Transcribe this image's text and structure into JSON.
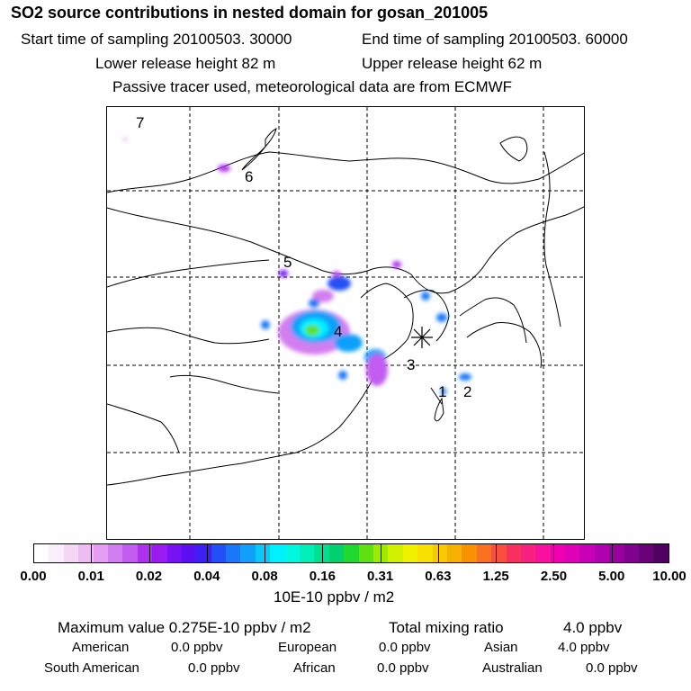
{
  "header": {
    "title": "SO2 source contributions in nested domain for gosan_201005",
    "start_label": "Start time of sampling 20100503. 30000",
    "end_label": "End time of sampling 20100503. 60000",
    "lower_release": "Lower release height   82 m",
    "upper_release": "Upper release height   62 m",
    "tracer_note": "Passive tracer used, meteorological data are from ECMWF"
  },
  "map": {
    "source_labels": [
      "7",
      "6",
      "5",
      "4",
      "3",
      "2",
      "1"
    ],
    "receptor_name": "gosan"
  },
  "colorbar": {
    "unit": "10E-10 ppbv / m2",
    "tick_labels": [
      "0.00",
      "0.01",
      "0.02",
      "0.04",
      "0.08",
      "0.16",
      "0.31",
      "0.63",
      "1.25",
      "2.50",
      "5.00",
      "10.00"
    ],
    "colors": [
      "#ffffff",
      "#fbeefc",
      "#f4d6f6",
      "#eebcf3",
      "#e39ef1",
      "#d37ef0",
      "#c35cf0",
      "#b030f0",
      "#9a1af0",
      "#7812f2",
      "#5a10f3",
      "#3d20f5",
      "#2050f6",
      "#1878f8",
      "#10a0fa",
      "#08c8fc",
      "#00f0ff",
      "#00f8e0",
      "#00f0b8",
      "#00e090",
      "#00d070",
      "#20d830",
      "#60e010",
      "#a0e800",
      "#d0f000",
      "#f0f000",
      "#f8e000",
      "#f8c800",
      "#f8b000",
      "#f89000",
      "#f87020",
      "#f85040",
      "#f83060",
      "#f82080",
      "#f810a0",
      "#f000b0",
      "#e000b8",
      "#c800b8",
      "#b000b0",
      "#9800a0",
      "#800090",
      "#680078",
      "#500060"
    ]
  },
  "summary": {
    "maximum_label": "Maximum value  0.275E-10 ppbv / m2",
    "total_label": "Total mixing ratio",
    "total_value": "4.0 ppbv",
    "american_label": "American",
    "american_value": "0.0 ppbv",
    "european_label": "European",
    "european_value": "0.0 ppbv",
    "asian_label": "Asian",
    "asian_value": "4.0 ppbv",
    "south_american_label": "South American",
    "south_american_value": "0.0 ppbv",
    "african_label": "African",
    "african_value": "0.0 ppbv",
    "australian_label": "Australian",
    "australian_value": "0.0 ppbv"
  }
}
